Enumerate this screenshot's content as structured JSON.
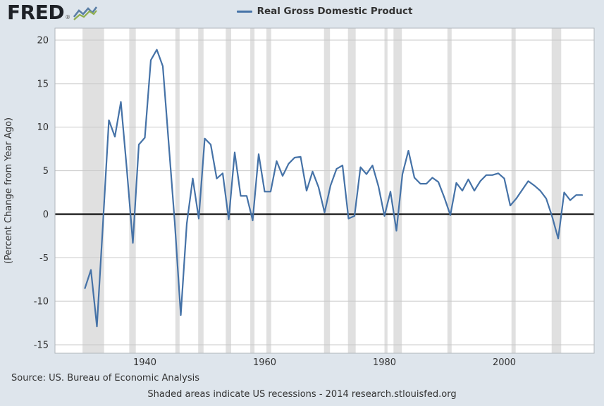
{
  "page": {
    "background": "#dee5ec"
  },
  "logo": {
    "text": "FRED",
    "mark": "®"
  },
  "legend": {
    "label": "Real Gross Domestic Product",
    "line_color": "#4572a7"
  },
  "y_axis": {
    "title": "(Percent Change from Year Ago)"
  },
  "footer": {
    "source": "Source: US. Bureau of Economic Analysis",
    "note": "Shaded areas indicate US recessions - 2014 research.stlouisfed.org"
  },
  "chart_data": {
    "type": "line",
    "title": "Real Gross Domestic Product",
    "ylabel": "(Percent Change from Year Ago)",
    "xlabel": "",
    "legend_position": "top",
    "grid": true,
    "ylim": [
      -15,
      20
    ],
    "xlim": [
      1925,
      2015
    ],
    "y_ticks": [
      20,
      15,
      10,
      5,
      0,
      -5,
      -10,
      -15
    ],
    "x_ticks": [
      1940,
      1960,
      1980,
      2000
    ],
    "line_color": "#4572a7",
    "grid_color": "#c9c9c9",
    "zero_line_color": "#000000",
    "recession_color": "#e0e0e0",
    "x": [
      1930,
      1931,
      1932,
      1933,
      1934,
      1935,
      1936,
      1937,
      1938,
      1939,
      1940,
      1941,
      1942,
      1943,
      1944,
      1945,
      1946,
      1947,
      1948,
      1949,
      1950,
      1951,
      1952,
      1953,
      1954,
      1955,
      1956,
      1957,
      1958,
      1959,
      1960,
      1961,
      1962,
      1963,
      1964,
      1965,
      1966,
      1967,
      1968,
      1969,
      1970,
      1971,
      1972,
      1973,
      1974,
      1975,
      1976,
      1977,
      1978,
      1979,
      1980,
      1981,
      1982,
      1983,
      1984,
      1985,
      1986,
      1987,
      1988,
      1989,
      1990,
      1991,
      1992,
      1993,
      1994,
      1995,
      1996,
      1997,
      1998,
      1999,
      2000,
      2001,
      2002,
      2003,
      2004,
      2005,
      2006,
      2007,
      2008,
      2009,
      2010,
      2011,
      2012,
      2013
    ],
    "values": [
      -8.5,
      -6.4,
      -12.9,
      -1.2,
      10.8,
      8.9,
      12.9,
      5.1,
      -3.3,
      8.0,
      8.8,
      17.7,
      18.9,
      17.0,
      8.0,
      -1.0,
      -11.6,
      -1.1,
      4.1,
      -0.5,
      8.7,
      8.0,
      4.1,
      4.7,
      -0.6,
      7.1,
      2.1,
      2.1,
      -0.7,
      6.9,
      2.6,
      2.6,
      6.1,
      4.4,
      5.8,
      6.5,
      6.6,
      2.7,
      4.9,
      3.1,
      0.2,
      3.3,
      5.2,
      5.6,
      -0.5,
      -0.2,
      5.4,
      4.6,
      5.6,
      3.2,
      -0.2,
      2.6,
      -1.9,
      4.6,
      7.3,
      4.2,
      3.5,
      3.5,
      4.2,
      3.7,
      1.9,
      -0.1,
      3.6,
      2.7,
      4.0,
      2.7,
      3.8,
      4.5,
      4.5,
      4.7,
      4.1,
      1.0,
      1.8,
      2.8,
      3.8,
      3.3,
      2.7,
      1.8,
      -0.3,
      -2.8,
      2.5,
      1.6,
      2.2,
      2.2
    ],
    "recessions": [
      [
        1929.6,
        1933.2
      ],
      [
        1937.4,
        1938.5
      ],
      [
        1945.1,
        1945.8
      ],
      [
        1948.9,
        1949.8
      ],
      [
        1953.5,
        1954.4
      ],
      [
        1957.6,
        1958.3
      ],
      [
        1960.3,
        1961.1
      ],
      [
        1969.9,
        1970.9
      ],
      [
        1973.9,
        1975.2
      ],
      [
        1980.0,
        1980.5
      ],
      [
        1981.5,
        1982.9
      ],
      [
        1990.5,
        1991.2
      ],
      [
        2001.2,
        2001.9
      ],
      [
        2007.9,
        2009.5
      ]
    ]
  }
}
